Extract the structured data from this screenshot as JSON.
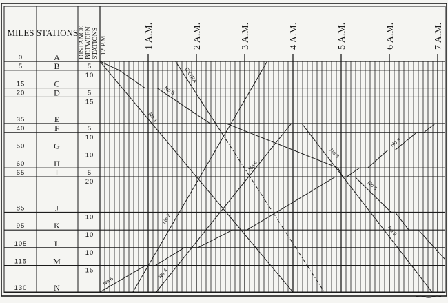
{
  "header": {
    "miles": "MILES",
    "stations": "STATIONS",
    "distance_lines": [
      "DISTANCE",
      "BETWEEN",
      "STATIONS"
    ],
    "start_time": "12 P.M"
  },
  "hours": [
    "1 A.M.",
    "2 A.M.",
    "3 A.M.",
    "4 A.M.",
    "5 A.M.",
    "6 A.M.",
    "7 A.M."
  ],
  "stations": [
    {
      "name": "A",
      "miles": "0",
      "distance": ""
    },
    {
      "name": "B",
      "miles": "5",
      "distance": "5"
    },
    {
      "name": "C",
      "miles": "15",
      "distance": "10"
    },
    {
      "name": "D",
      "miles": "20",
      "distance": "5"
    },
    {
      "name": "E",
      "miles": "35",
      "distance": "15"
    },
    {
      "name": "F",
      "miles": "40",
      "distance": "5"
    },
    {
      "name": "G",
      "miles": "50",
      "distance": "10"
    },
    {
      "name": "H",
      "miles": "60",
      "distance": "10"
    },
    {
      "name": "I",
      "miles": "65",
      "distance": "5"
    },
    {
      "name": "J",
      "miles": "85",
      "distance": "20"
    },
    {
      "name": "K",
      "miles": "95",
      "distance": "10"
    },
    {
      "name": "L",
      "miles": "105",
      "distance": "10"
    },
    {
      "name": "M",
      "miles": "115",
      "distance": "10"
    },
    {
      "name": "N",
      "miles": "130",
      "distance": "15"
    }
  ],
  "time_grid": {
    "start": "12:00",
    "end": "7:10",
    "minor_step_minutes": 6
  },
  "trains": [
    {
      "name": "No 1",
      "points": [
        [
          "12:00",
          "A"
        ],
        [
          "4:00",
          "N"
        ]
      ]
    },
    {
      "name": "No 2",
      "points": [
        [
          "12:41",
          "N"
        ],
        [
          "3:28",
          "A"
        ]
      ]
    },
    {
      "name": "No 3",
      "points": [
        [
          "4:11",
          "E"
        ],
        [
          "6:53",
          "N"
        ]
      ]
    },
    {
      "name": "No 4",
      "points": [
        [
          "1:10",
          "N"
        ],
        [
          "3:58",
          "E"
        ]
      ]
    },
    {
      "name": "No 5",
      "points": [
        [
          "12:00",
          "A"
        ],
        [
          "12:24",
          "B"
        ],
        [
          "12:56",
          "C"
        ],
        [
          "1:11",
          "C"
        ],
        [
          "2:17",
          "E"
        ],
        [
          "2:37",
          "E"
        ],
        [
          "4:56",
          "H"
        ],
        [
          "5:02",
          "I"
        ],
        [
          "5:17",
          "I"
        ],
        [
          "6:02",
          "J"
        ],
        [
          "6:07",
          "J"
        ],
        [
          "6:24",
          "K"
        ],
        [
          "6:36",
          "K"
        ],
        [
          "6:56",
          "L"
        ],
        [
          "7:16",
          "M"
        ]
      ]
    },
    {
      "name": "No 6",
      "points": [
        [
          "12:00",
          "N"
        ],
        [
          "12:57",
          "M"
        ],
        [
          "1:09",
          "M"
        ],
        [
          "1:45",
          "L"
        ],
        [
          "2:02",
          "L"
        ],
        [
          "2:45",
          "K"
        ],
        [
          "3:03",
          "K"
        ],
        [
          "4:53",
          "I"
        ],
        [
          "5:07",
          "I"
        ],
        [
          "5:23",
          "H"
        ],
        [
          "5:33",
          "H"
        ],
        [
          "5:58",
          "G"
        ],
        [
          "6:07",
          "G"
        ],
        [
          "6:34",
          "F"
        ],
        [
          "6:43",
          "F"
        ],
        [
          "6:57",
          "E"
        ]
      ]
    },
    {
      "name": "EXTRA",
      "points": [
        [
          "1:34",
          "A"
        ],
        [
          "2:31",
          "F"
        ]
      ],
      "style": "solid"
    },
    {
      "name": "EXTRA",
      "points": [
        [
          "2:31",
          "F"
        ],
        [
          "4:39",
          "N"
        ]
      ],
      "style": "dash-dot"
    }
  ],
  "train_labels": [
    "EXTRA",
    "No 5",
    "No 1",
    "No 4",
    "No 3",
    "No 6",
    "No 5",
    "No 2",
    "No 3",
    "No 6",
    "No 4"
  ],
  "colors": {
    "ink": "#1c1c1c",
    "paper": "#f5f5f2"
  }
}
